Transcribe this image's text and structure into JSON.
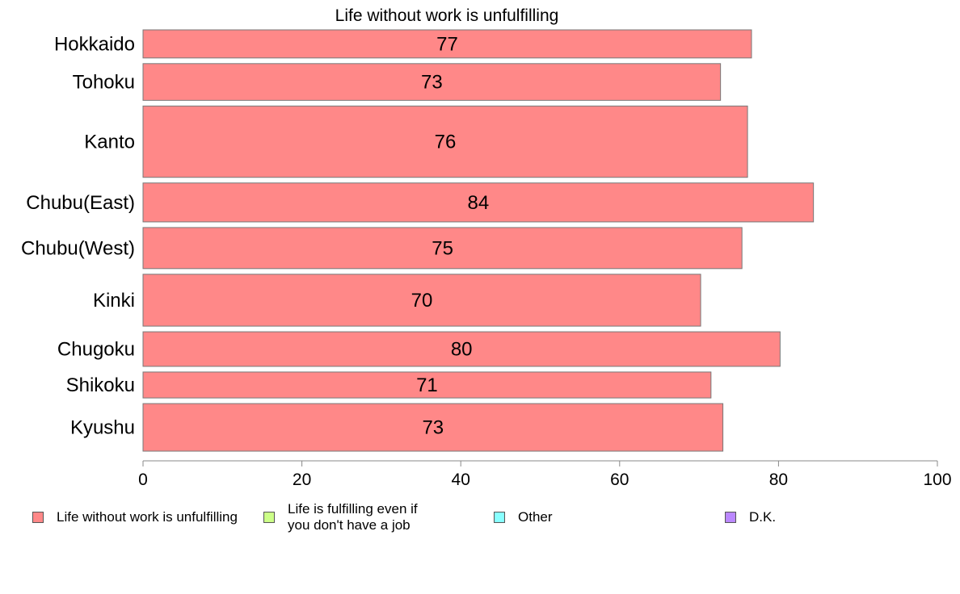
{
  "chart_data": {
    "type": "bar",
    "orientation": "horizontal",
    "title": "Life without work is unfulfilling",
    "categories": [
      "Hokkaido",
      "Tohoku",
      "Kanto",
      "Chubu(East)",
      "Chubu(West)",
      "Kinki",
      "Chugoku",
      "Shikoku",
      "Kyushu"
    ],
    "series": [
      {
        "name": "Life without work is unfulfilling",
        "values": [
          76.6,
          72.7,
          76.1,
          84.4,
          75.4,
          70.2,
          80.2,
          71.5,
          73.0
        ],
        "labels": [
          "77",
          "73",
          "76",
          "84",
          "75",
          "70",
          "80",
          "71",
          "73"
        ],
        "color": "#ff8888"
      }
    ],
    "relative_bar_widths": [
      0.65,
      0.85,
      1.65,
      0.9,
      0.95,
      1.2,
      0.8,
      0.6,
      1.1
    ],
    "xlim": [
      0,
      100
    ],
    "xticks": [
      "0",
      "20",
      "40",
      "60",
      "80",
      "100"
    ],
    "grid": false,
    "legend_position": "bottom",
    "legend": [
      {
        "label": "Life without work is unfulfilling",
        "color": "#ff8888"
      },
      {
        "label": "Life is fulfilling even if\nyou don't have a job",
        "color": "#ccff88"
      },
      {
        "label": "Other",
        "color": "#88ffff"
      },
      {
        "label": "D.K.",
        "color": "#bb88ff"
      }
    ]
  }
}
